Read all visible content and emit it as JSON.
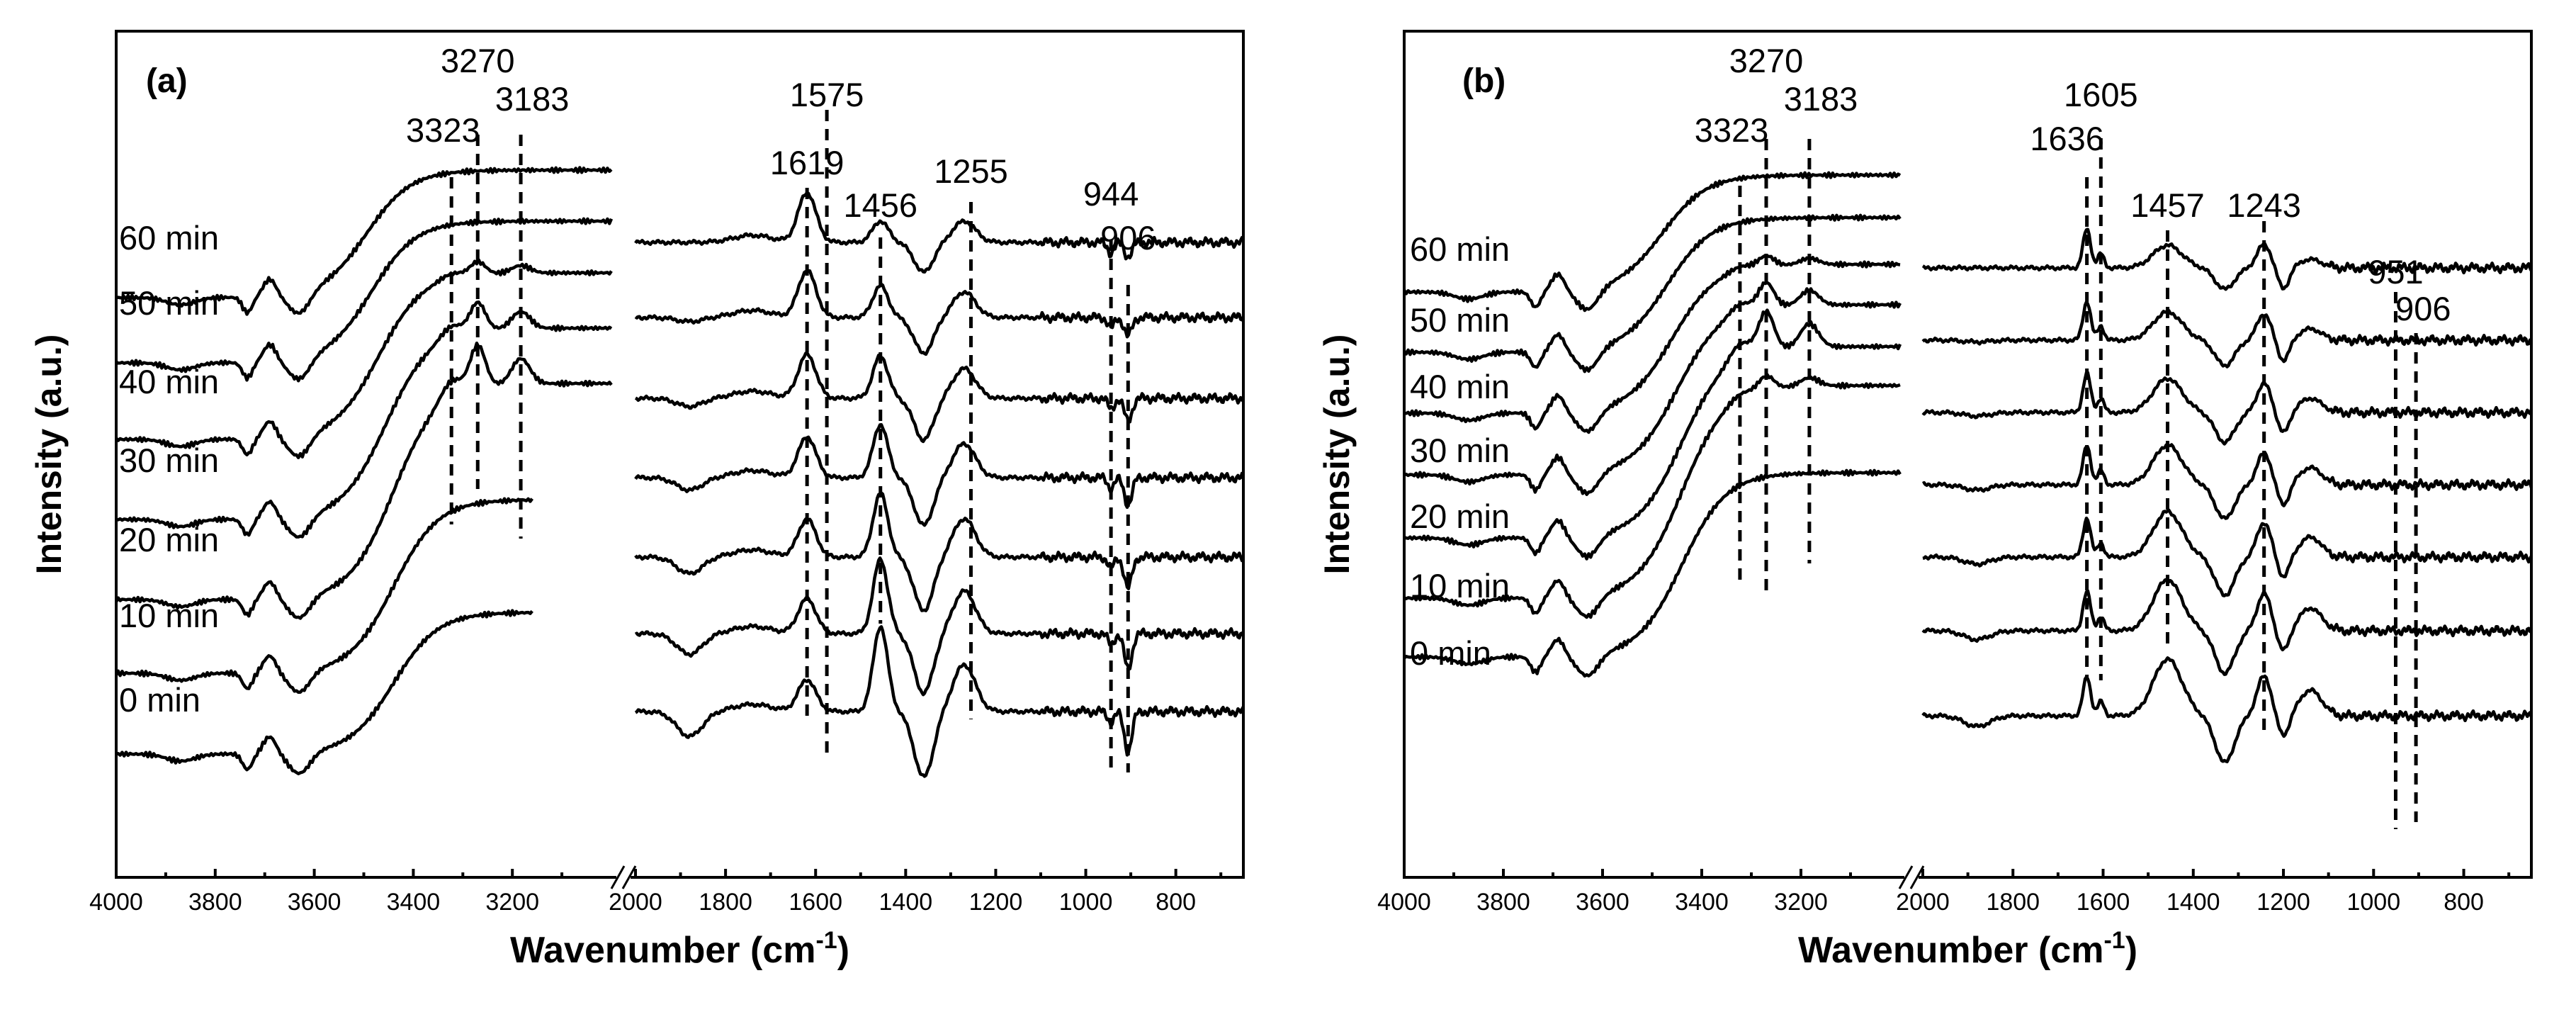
{
  "chart_data": [
    {
      "type": "line",
      "panel_label": "(a)",
      "xlabel": "Wavenumber (cm",
      "xlabel_sup": "-1",
      "xlabel_tail": ")",
      "ylabel": "Intensity (a.u.)",
      "x_axis_break": true,
      "xlim_left": [
        4000,
        3000
      ],
      "xlim_right": [
        2000,
        650
      ],
      "x_ticks_left": [
        "4000",
        "3800",
        "3600",
        "3400",
        "3200"
      ],
      "x_ticks_right": [
        "2000",
        "1800",
        "1600",
        "1400",
        "1200",
        "1000",
        "800"
      ],
      "series": [
        {
          "name": "60 min"
        },
        {
          "name": "50 min"
        },
        {
          "name": "40 min"
        },
        {
          "name": "30 min"
        },
        {
          "name": "20 min"
        },
        {
          "name": "10 min"
        },
        {
          "name": "0 min"
        }
      ],
      "peak_labels": [
        {
          "text": "3270",
          "x": 3270
        },
        {
          "text": "3323",
          "x": 3323
        },
        {
          "text": "3183",
          "x": 3183
        },
        {
          "text": "1575",
          "x": 1575
        },
        {
          "text": "1619",
          "x": 1619
        },
        {
          "text": "1456",
          "x": 1456
        },
        {
          "text": "1255",
          "x": 1255
        },
        {
          "text": "944",
          "x": 944
        },
        {
          "text": "906",
          "x": 906
        }
      ]
    },
    {
      "type": "line",
      "panel_label": "(b)",
      "xlabel": "Wavenumber (cm",
      "xlabel_sup": "-1",
      "xlabel_tail": ")",
      "ylabel": "Intensity (a.u.)",
      "x_axis_break": true,
      "xlim_left": [
        4000,
        3000
      ],
      "xlim_right": [
        2000,
        650
      ],
      "x_ticks_left": [
        "4000",
        "3800",
        "3600",
        "3400",
        "3200"
      ],
      "x_ticks_right": [
        "2000",
        "1800",
        "1600",
        "1400",
        "1200",
        "1000",
        "800"
      ],
      "series": [
        {
          "name": "60 min"
        },
        {
          "name": "50 min"
        },
        {
          "name": "40 min"
        },
        {
          "name": "30 min"
        },
        {
          "name": "20 min"
        },
        {
          "name": "10 min"
        },
        {
          "name": "0 min"
        }
      ],
      "peak_labels": [
        {
          "text": "3270",
          "x": 3270
        },
        {
          "text": "3323",
          "x": 3323
        },
        {
          "text": "3183",
          "x": 3183
        },
        {
          "text": "1605",
          "x": 1605
        },
        {
          "text": "1636",
          "x": 1636
        },
        {
          "text": "1457",
          "x": 1457
        },
        {
          "text": "1243",
          "x": 1243
        },
        {
          "text": "951",
          "x": 951
        },
        {
          "text": "906",
          "x": 906
        }
      ]
    }
  ]
}
